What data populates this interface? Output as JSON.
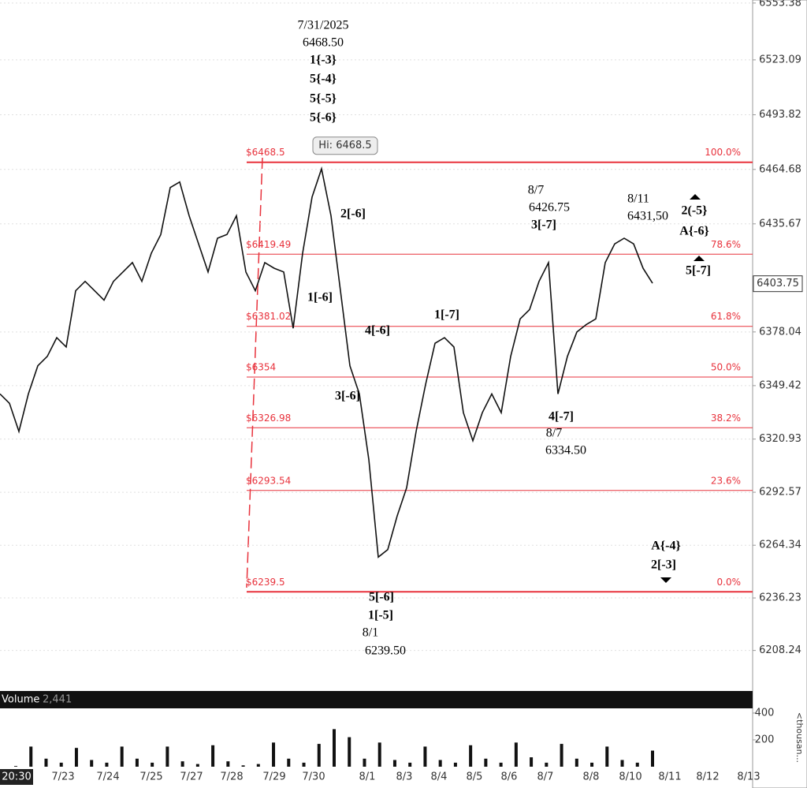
{
  "chart_data": {
    "type": "line",
    "series": [
      {
        "name": "Price",
        "color": "#111111",
        "values": [
          6345,
          6340,
          6325,
          6345,
          6360,
          6365,
          6375,
          6370,
          6400,
          6405,
          6400,
          6395,
          6405,
          6410,
          6415,
          6405,
          6420,
          6430,
          6455,
          6458,
          6440,
          6425,
          6410,
          6428,
          6430,
          6440,
          6410,
          6400,
          6415,
          6412,
          6410,
          6380,
          6420,
          6450,
          6465,
          6440,
          6400,
          6360,
          6345,
          6310,
          6258,
          6262,
          6280,
          6295,
          6325,
          6350,
          6372,
          6375,
          6370,
          6335,
          6320,
          6335,
          6345,
          6335,
          6365,
          6385,
          6390,
          6405,
          6415,
          6345,
          6365,
          6378,
          6382,
          6385,
          6415,
          6425,
          6428,
          6425,
          6412,
          6404
        ]
      }
    ],
    "ylim": [
      6190,
      6555
    ],
    "yticks": [
      6553.38,
      6523.09,
      6493.82,
      6464.68,
      6435.67,
      6378.04,
      6349.42,
      6320.93,
      6292.57,
      6264.34,
      6236.23,
      6208.24
    ],
    "last_price": 6403.75,
    "high_label": "Hi: 6468.5",
    "fib_levels": [
      {
        "price": 6468.5,
        "price_label": "$6468.5",
        "pct": 100,
        "pct_label": "100.0%"
      },
      {
        "price": 6419.49,
        "price_label": "$6419.49",
        "pct": 78.6,
        "pct_label": "78.6%"
      },
      {
        "price": 6381.02,
        "price_label": "$6381.02",
        "pct": 61.8,
        "pct_label": "61.8%"
      },
      {
        "price": 6354,
        "price_label": "$6354",
        "pct": 50,
        "pct_label": "50.0%"
      },
      {
        "price": 6326.98,
        "price_label": "$6326.98",
        "pct": 38.2,
        "pct_label": "38.2%"
      },
      {
        "price": 6293.54,
        "price_label": "$6293.54",
        "pct": 23.6,
        "pct_label": "23.6%"
      },
      {
        "price": 6239.5,
        "price_label": "$6239.5",
        "pct": 0,
        "pct_label": "0.0%"
      }
    ],
    "annotations": [
      "7/31/2025",
      "6468.50",
      "1{-3}",
      "5{-4}",
      "5{-5}",
      "5{-6}",
      "2[-6]",
      "1[-6]",
      "4[-6]",
      "3[-6]",
      "5[-6]",
      "1[-5]",
      "8/1",
      "6239.50",
      "1[-7]",
      "8/7",
      "6426.75",
      "3[-7]",
      "4[-7]",
      "8/7",
      "6334.50",
      "8/11",
      "6431,50",
      "2(-5}",
      "A{-6}",
      "5[-7]",
      "A{-4}",
      "2[-3]"
    ],
    "volume": {
      "label": "Volume",
      "last": {
        "value": 2441,
        "label": "2,441"
      },
      "unit_label": "<thousan...",
      "ylim": [
        0,
        435
      ],
      "yticks": [
        400,
        200
      ],
      "values": [
        5,
        150,
        60,
        30,
        140,
        50,
        30,
        150,
        60,
        30,
        150,
        40,
        20,
        160,
        40,
        10,
        20,
        180,
        60,
        30,
        170,
        280,
        220,
        60,
        180,
        50,
        30,
        150,
        50,
        30,
        160,
        60,
        30,
        180,
        70,
        30,
        170,
        60,
        30,
        150,
        50,
        30,
        120
      ]
    },
    "time_label": "20:30",
    "xlabels": [
      "7/23",
      "7/24",
      "7/25",
      "7/27",
      "7/28",
      "7/29",
      "7/30",
      "8/1",
      "8/3",
      "8/4",
      "8/5",
      "8/6",
      "8/7",
      "8/8",
      "8/10",
      "8/11",
      "8/12",
      "8/13"
    ]
  }
}
